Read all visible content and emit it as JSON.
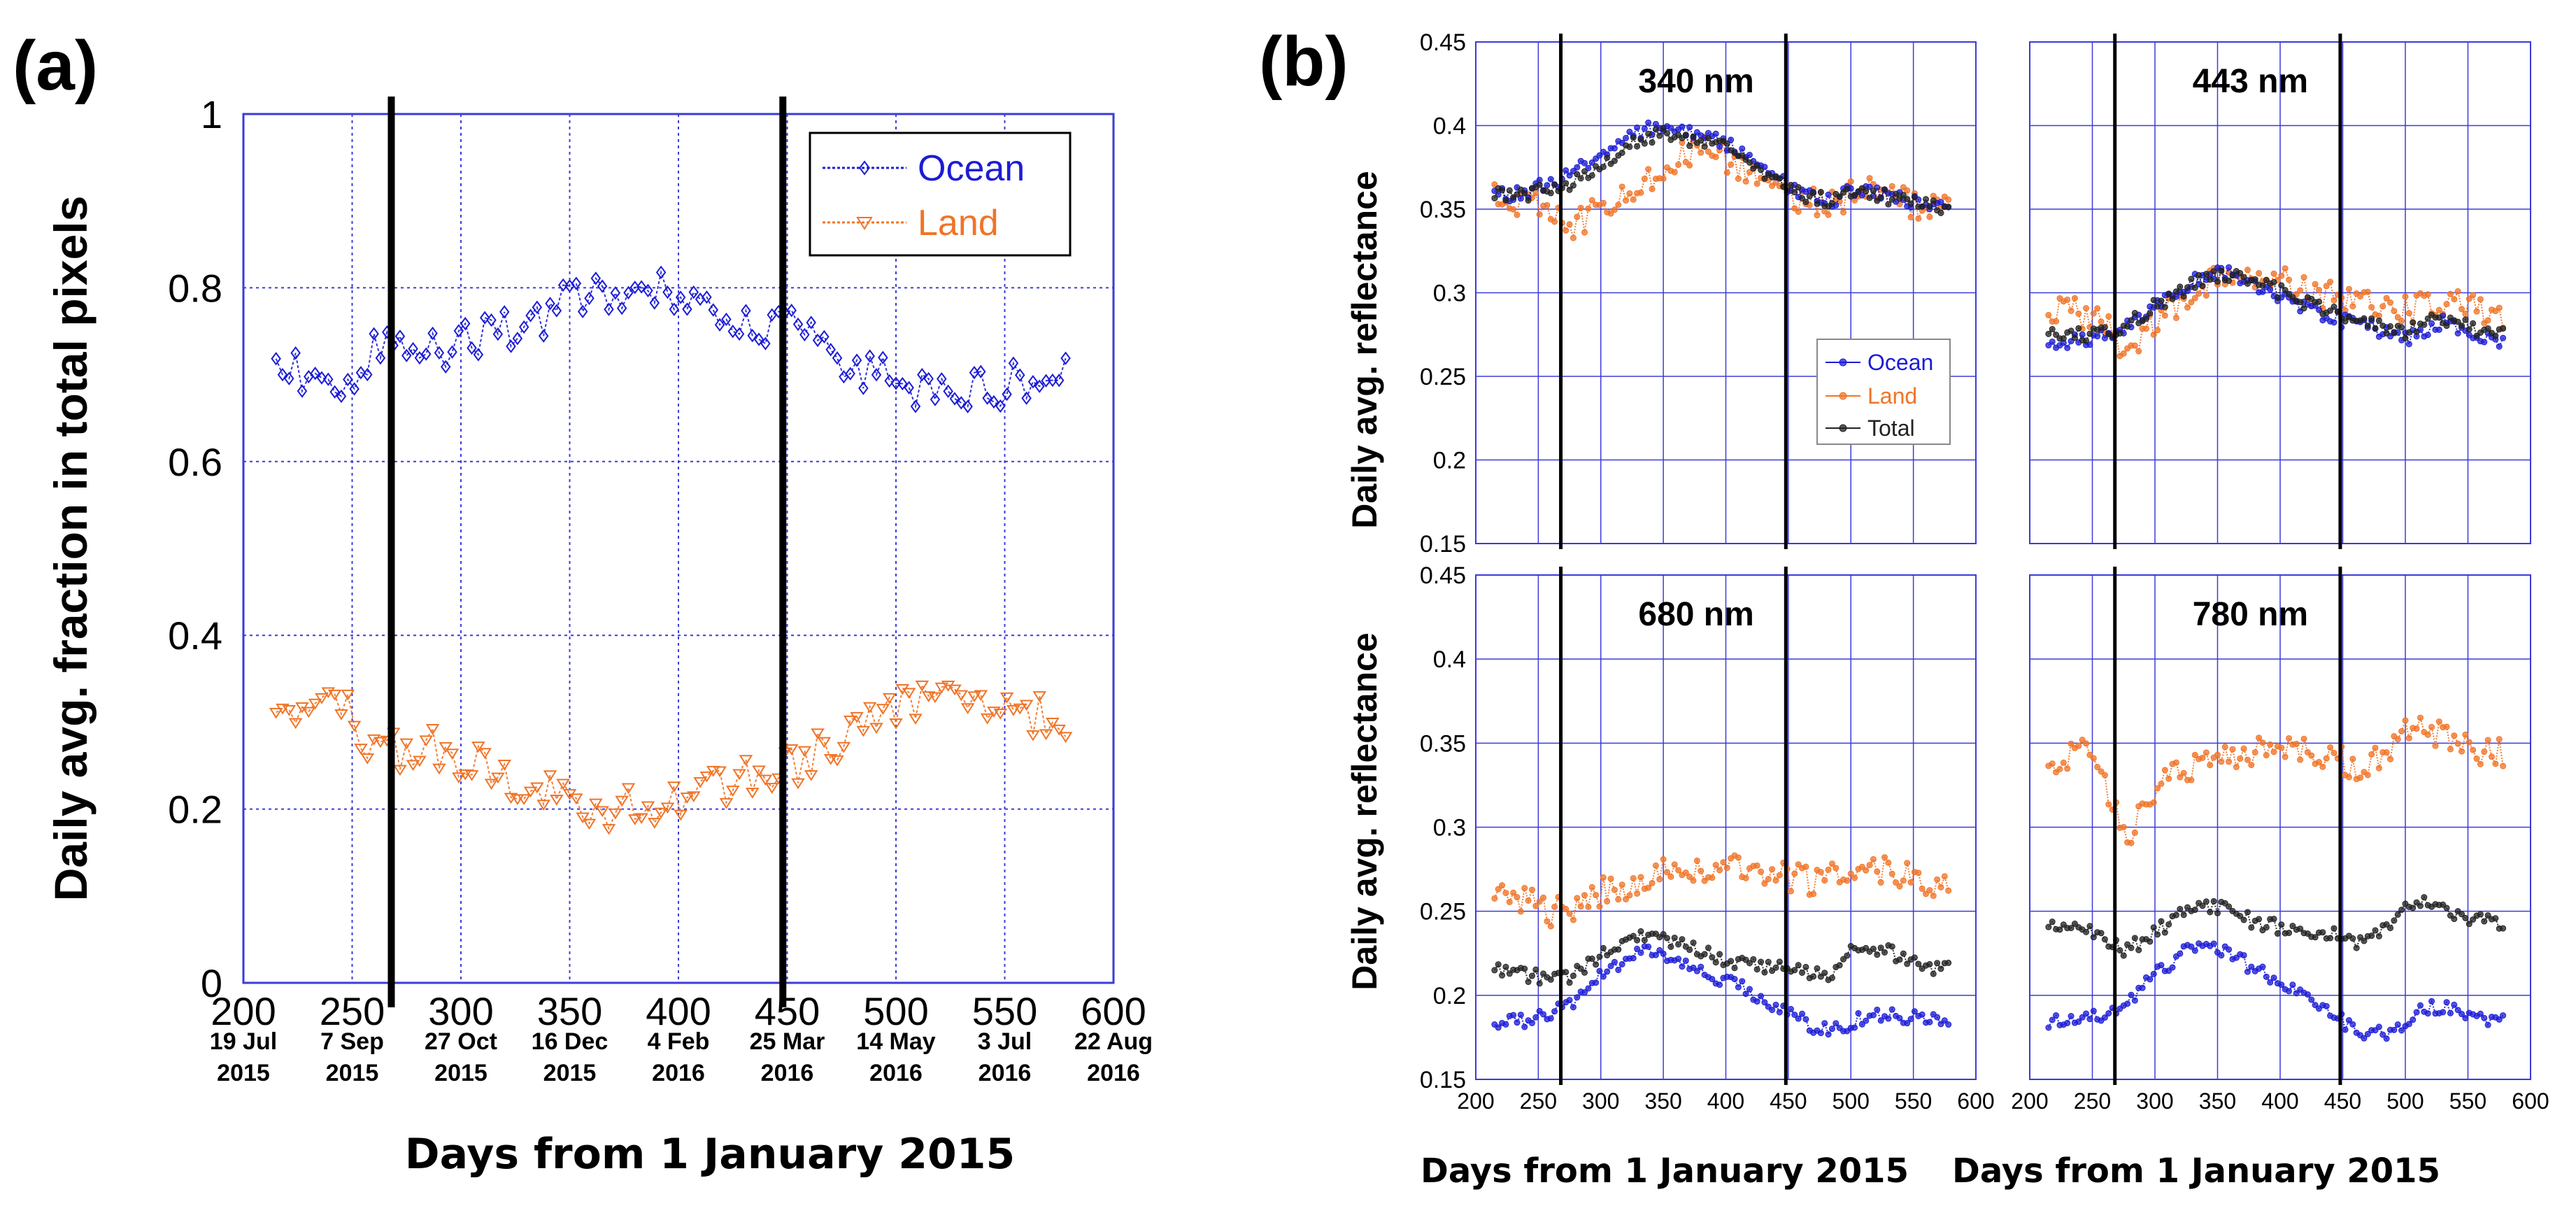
{
  "panel_a": {
    "label": "(a)",
    "ylabel": "Daily avg. fraction in total pixels",
    "xlabel": "Days from 1 January 2015",
    "xticks": [
      "200",
      "250",
      "300",
      "350",
      "400",
      "450",
      "500",
      "550",
      "600"
    ],
    "yticks": [
      "0",
      "0.2",
      "0.4",
      "0.6",
      "0.8",
      "1"
    ],
    "dates": [
      {
        "day": "19 Jul",
        "year": "2015"
      },
      {
        "day": "7 Sep",
        "year": "2015"
      },
      {
        "day": "27 Oct",
        "year": "2015"
      },
      {
        "day": "16 Dec",
        "year": "2015"
      },
      {
        "day": "4 Feb",
        "year": "2016"
      },
      {
        "day": "25 Mar",
        "year": "2016"
      },
      {
        "day": "14 May",
        "year": "2016"
      },
      {
        "day": "3 Jul",
        "year": "2016"
      },
      {
        "day": "22 Aug",
        "year": "2016"
      }
    ],
    "legend": [
      "Ocean",
      "Land"
    ]
  },
  "panel_b": {
    "label": "(b)",
    "ylabel": "Daily avg. reflectance",
    "xlabel": "Days from 1 January 2015",
    "xticks": [
      "200",
      "250",
      "300",
      "350",
      "400",
      "450",
      "500",
      "550",
      "600"
    ],
    "yticks": [
      "0.15",
      "0.2",
      "0.25",
      "0.3",
      "0.35",
      "0.4",
      "0.45"
    ],
    "legend": [
      "Ocean",
      "Land",
      "Total"
    ],
    "wavelengths": [
      "340 nm",
      "443 nm",
      "680 nm",
      "780 nm"
    ]
  },
  "colors": {
    "ocean": "#1c1cd6",
    "land": "#f07427",
    "total": "#222222",
    "grid": "#3b3bd8"
  },
  "chart_data": [
    {
      "type": "line",
      "title": "(a)",
      "xlabel": "Days from 1 January 2015",
      "ylabel": "Daily avg. fraction in total pixels",
      "xlim": [
        200,
        600
      ],
      "ylim": [
        0,
        1
      ],
      "vlines": [
        268,
        448
      ],
      "series": [
        {
          "name": "Ocean",
          "key": "ocean",
          "marker": "diamond",
          "x": [
            215,
            230,
            245,
            255,
            265,
            272,
            285,
            300,
            320,
            340,
            355,
            370,
            385,
            400,
            415,
            430,
            445,
            460,
            475,
            490,
            505,
            520,
            535,
            550,
            565,
            580
          ],
          "y": [
            0.71,
            0.7,
            0.67,
            0.72,
            0.74,
            0.73,
            0.72,
            0.74,
            0.75,
            0.77,
            0.79,
            0.8,
            0.8,
            0.79,
            0.78,
            0.76,
            0.76,
            0.74,
            0.72,
            0.7,
            0.68,
            0.67,
            0.68,
            0.69,
            0.69,
            0.7
          ]
        },
        {
          "name": "Land",
          "key": "land",
          "marker": "triangle-down",
          "x": [
            215,
            230,
            245,
            255,
            265,
            272,
            285,
            300,
            320,
            340,
            355,
            370,
            385,
            400,
            415,
            430,
            445,
            460,
            475,
            490,
            505,
            520,
            535,
            550,
            565,
            580
          ],
          "y": [
            0.29,
            0.3,
            0.33,
            0.28,
            0.26,
            0.27,
            0.27,
            0.26,
            0.24,
            0.22,
            0.21,
            0.2,
            0.2,
            0.21,
            0.22,
            0.24,
            0.24,
            0.26,
            0.28,
            0.3,
            0.32,
            0.33,
            0.32,
            0.31,
            0.31,
            0.3
          ]
        }
      ]
    },
    {
      "type": "line",
      "title": "340 nm",
      "xlim": [
        200,
        600
      ],
      "ylim": [
        0.15,
        0.45
      ],
      "vlines": [
        268,
        448
      ],
      "x": [
        215,
        230,
        245,
        260,
        275,
        290,
        305,
        320,
        335,
        350,
        365,
        380,
        395,
        410,
        425,
        440,
        455,
        470,
        485,
        500,
        515,
        530,
        545,
        560,
        575,
        580
      ],
      "series": [
        {
          "name": "Ocean",
          "key": "ocean",
          "y": [
            0.36,
            0.358,
            0.362,
            0.365,
            0.37,
            0.378,
            0.385,
            0.392,
            0.398,
            0.4,
            0.397,
            0.393,
            0.39,
            0.386,
            0.378,
            0.368,
            0.362,
            0.358,
            0.356,
            0.36,
            0.362,
            0.358,
            0.355,
            0.354,
            0.352,
            0.352
          ]
        },
        {
          "name": "Land",
          "key": "land",
          "y": [
            0.362,
            0.356,
            0.352,
            0.348,
            0.34,
            0.345,
            0.352,
            0.36,
            0.368,
            0.375,
            0.382,
            0.388,
            0.384,
            0.375,
            0.368,
            0.362,
            0.358,
            0.355,
            0.353,
            0.358,
            0.36,
            0.356,
            0.354,
            0.352,
            0.35,
            0.35
          ]
        },
        {
          "name": "Total",
          "key": "total",
          "y": [
            0.361,
            0.358,
            0.36,
            0.362,
            0.365,
            0.372,
            0.38,
            0.387,
            0.393,
            0.395,
            0.393,
            0.39,
            0.388,
            0.383,
            0.375,
            0.366,
            0.36,
            0.357,
            0.355,
            0.359,
            0.361,
            0.357,
            0.354,
            0.353,
            0.351,
            0.351
          ]
        }
      ]
    },
    {
      "type": "line",
      "title": "443 nm",
      "xlim": [
        200,
        600
      ],
      "ylim": [
        0.15,
        0.45
      ],
      "vlines": [
        268,
        448
      ],
      "x": [
        215,
        230,
        245,
        260,
        275,
        290,
        305,
        320,
        335,
        350,
        365,
        380,
        395,
        410,
        425,
        440,
        455,
        470,
        485,
        500,
        515,
        530,
        545,
        560,
        575,
        580
      ],
      "series": [
        {
          "name": "Ocean",
          "key": "ocean",
          "y": [
            0.272,
            0.27,
            0.272,
            0.275,
            0.28,
            0.288,
            0.295,
            0.302,
            0.308,
            0.312,
            0.31,
            0.305,
            0.3,
            0.295,
            0.29,
            0.286,
            0.282,
            0.28,
            0.275,
            0.272,
            0.278,
            0.282,
            0.278,
            0.274,
            0.272,
            0.272
          ]
        },
        {
          "name": "Land",
          "key": "land",
          "y": [
            0.292,
            0.29,
            0.286,
            0.282,
            0.262,
            0.275,
            0.285,
            0.295,
            0.302,
            0.308,
            0.312,
            0.31,
            0.308,
            0.304,
            0.3,
            0.298,
            0.296,
            0.294,
            0.292,
            0.29,
            0.292,
            0.294,
            0.292,
            0.29,
            0.288,
            0.288
          ]
        },
        {
          "name": "Total",
          "key": "total",
          "y": [
            0.276,
            0.274,
            0.275,
            0.277,
            0.28,
            0.287,
            0.294,
            0.301,
            0.307,
            0.311,
            0.31,
            0.306,
            0.302,
            0.297,
            0.292,
            0.288,
            0.285,
            0.282,
            0.278,
            0.276,
            0.281,
            0.285,
            0.281,
            0.277,
            0.275,
            0.275
          ]
        }
      ]
    },
    {
      "type": "line",
      "title": "680 nm",
      "xlim": [
        200,
        600
      ],
      "ylim": [
        0.15,
        0.45
      ],
      "vlines": [
        268,
        448
      ],
      "x": [
        215,
        230,
        245,
        260,
        275,
        290,
        305,
        320,
        335,
        350,
        365,
        380,
        395,
        410,
        425,
        440,
        455,
        470,
        485,
        500,
        515,
        530,
        545,
        560,
        575,
        580
      ],
      "series": [
        {
          "name": "Ocean",
          "key": "ocean",
          "y": [
            0.185,
            0.184,
            0.186,
            0.19,
            0.195,
            0.205,
            0.215,
            0.222,
            0.226,
            0.225,
            0.22,
            0.215,
            0.21,
            0.205,
            0.2,
            0.194,
            0.188,
            0.182,
            0.18,
            0.183,
            0.188,
            0.19,
            0.187,
            0.185,
            0.184,
            0.184
          ]
        },
        {
          "name": "Land",
          "key": "land",
          "y": [
            0.262,
            0.26,
            0.255,
            0.25,
            0.252,
            0.258,
            0.262,
            0.265,
            0.27,
            0.272,
            0.274,
            0.276,
            0.275,
            0.274,
            0.273,
            0.272,
            0.27,
            0.268,
            0.27,
            0.275,
            0.278,
            0.274,
            0.27,
            0.266,
            0.264,
            0.264
          ]
        },
        {
          "name": "Total",
          "key": "total",
          "y": [
            0.215,
            0.213,
            0.212,
            0.21,
            0.212,
            0.218,
            0.225,
            0.232,
            0.236,
            0.235,
            0.23,
            0.226,
            0.222,
            0.22,
            0.218,
            0.216,
            0.214,
            0.212,
            0.214,
            0.226,
            0.23,
            0.226,
            0.222,
            0.218,
            0.215,
            0.215
          ]
        }
      ]
    },
    {
      "type": "line",
      "title": "780 nm",
      "xlim": [
        200,
        600
      ],
      "ylim": [
        0.15,
        0.45
      ],
      "vlines": [
        268,
        448
      ],
      "x": [
        215,
        230,
        245,
        260,
        275,
        290,
        305,
        320,
        335,
        350,
        365,
        380,
        395,
        410,
        425,
        440,
        455,
        470,
        485,
        500,
        515,
        530,
        545,
        560,
        575,
        580
      ],
      "series": [
        {
          "name": "Ocean",
          "key": "ocean",
          "y": [
            0.184,
            0.183,
            0.185,
            0.19,
            0.196,
            0.205,
            0.215,
            0.225,
            0.23,
            0.228,
            0.222,
            0.216,
            0.21,
            0.205,
            0.198,
            0.19,
            0.182,
            0.176,
            0.178,
            0.185,
            0.192,
            0.194,
            0.19,
            0.187,
            0.185,
            0.185
          ]
        },
        {
          "name": "Land",
          "key": "land",
          "y": [
            0.34,
            0.342,
            0.346,
            0.33,
            0.292,
            0.31,
            0.325,
            0.332,
            0.338,
            0.342,
            0.344,
            0.346,
            0.345,
            0.346,
            0.345,
            0.342,
            0.338,
            0.336,
            0.345,
            0.355,
            0.362,
            0.352,
            0.348,
            0.346,
            0.344,
            0.344
          ]
        },
        {
          "name": "Total",
          "key": "total",
          "y": [
            0.24,
            0.239,
            0.238,
            0.234,
            0.226,
            0.232,
            0.24,
            0.248,
            0.252,
            0.252,
            0.248,
            0.244,
            0.241,
            0.24,
            0.238,
            0.236,
            0.233,
            0.232,
            0.24,
            0.252,
            0.256,
            0.25,
            0.246,
            0.244,
            0.242,
            0.242
          ]
        }
      ]
    }
  ]
}
